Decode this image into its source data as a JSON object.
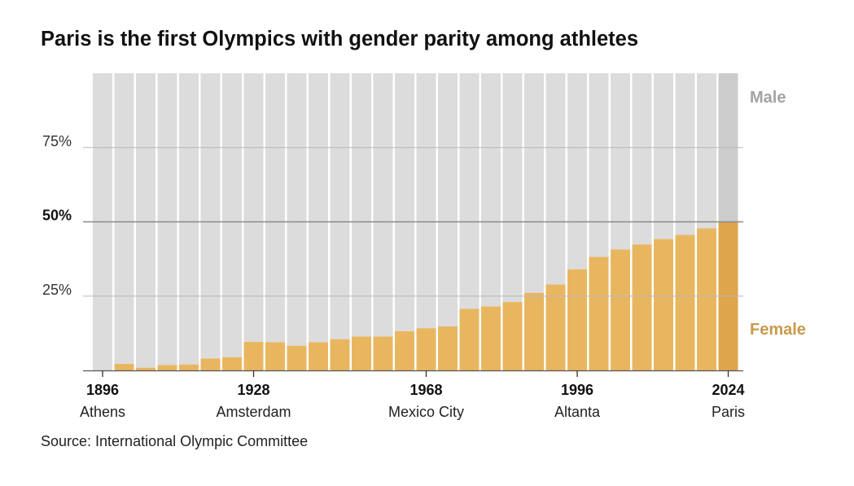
{
  "title": "Paris is the first Olympics with gender parity among athletes",
  "source": "Source: International Olympic Committee",
  "chart_data": {
    "type": "bar",
    "stacked": true,
    "x": [
      "1896",
      "1900",
      "1904",
      "1908",
      "1912",
      "1920",
      "1924",
      "1928",
      "1932",
      "1936",
      "1948",
      "1952",
      "1956",
      "1960",
      "1964",
      "1968",
      "1972",
      "1976",
      "1980",
      "1984",
      "1988",
      "1992",
      "1996",
      "2000",
      "2004",
      "2008",
      "2012",
      "2016",
      "2020",
      "2024"
    ],
    "series": [
      {
        "name": "Female",
        "color": "#e9b660",
        "highlight_color": "#dfa54d",
        "values": [
          0,
          2.2,
          0.9,
          1.8,
          2.0,
          4.0,
          4.4,
          9.6,
          9.5,
          8.3,
          9.5,
          10.5,
          11.4,
          11.4,
          13.2,
          14.2,
          14.8,
          20.7,
          21.5,
          23.0,
          26.1,
          28.9,
          34.0,
          38.2,
          40.7,
          42.4,
          44.2,
          45.6,
          47.8,
          50.0
        ]
      },
      {
        "name": "Male",
        "color": "#dcdcdc",
        "highlight_color": "#cccccc",
        "values": [
          100,
          97.8,
          99.1,
          98.2,
          98.0,
          96.0,
          95.6,
          90.4,
          90.5,
          91.7,
          90.5,
          89.5,
          88.6,
          88.6,
          86.8,
          85.8,
          85.2,
          79.3,
          78.5,
          77.0,
          73.9,
          71.1,
          66.0,
          61.8,
          59.3,
          57.6,
          55.8,
          54.4,
          52.2,
          50.0
        ]
      }
    ],
    "ylim": [
      0,
      100
    ],
    "y_ticks": [
      {
        "value": 25,
        "label": "25%",
        "bold": false
      },
      {
        "value": 50,
        "label": "50%",
        "bold": true
      },
      {
        "value": 75,
        "label": "75%",
        "bold": false
      }
    ],
    "x_labels": [
      {
        "year": "1896",
        "city": "Athens"
      },
      {
        "year": "1928",
        "city": "Amsterdam"
      },
      {
        "year": "1968",
        "city": "Mexico City"
      },
      {
        "year": "1996",
        "city": "Altanta"
      },
      {
        "year": "2024",
        "city": "Paris"
      }
    ],
    "legend": [
      {
        "label": "Male",
        "color": "#a3a3a3",
        "placement": "top-right"
      },
      {
        "label": "Female",
        "color": "#c99a4a",
        "placement": "right"
      }
    ],
    "grid": true,
    "xlabel": "",
    "ylabel": ""
  }
}
